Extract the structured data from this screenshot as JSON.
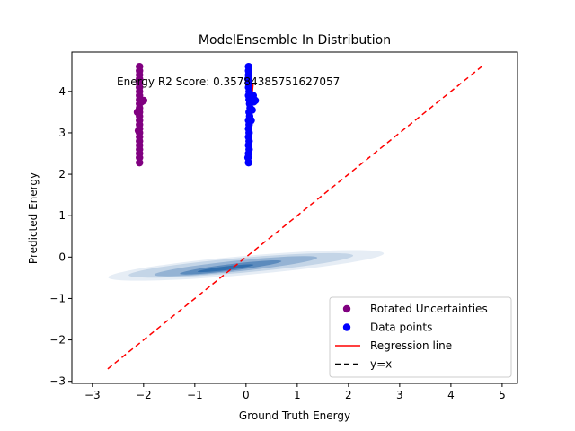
{
  "chart_data": {
    "type": "scatter",
    "title": "ModelEnsemble In Distribution",
    "xlabel": "Ground Truth Energy",
    "ylabel": "Predicted Energy",
    "xlim": [
      -3.4,
      5.3
    ],
    "ylim": [
      -3.05,
      4.95
    ],
    "xticks": [
      -3,
      -2,
      -1,
      0,
      1,
      2,
      3,
      4,
      5
    ],
    "yticks": [
      -3,
      -2,
      -1,
      0,
      1,
      2,
      3,
      4
    ],
    "xtick_labels": [
      "−3",
      "−2",
      "−1",
      "0",
      "1",
      "2",
      "3",
      "4",
      "5"
    ],
    "ytick_labels": [
      "−3",
      "−2",
      "−1",
      "0",
      "1",
      "2",
      "3",
      "4"
    ],
    "grid": false,
    "legend_position": "lower-right",
    "annotation": "Energy R2 Score: 0.35784385751627057",
    "series": [
      {
        "name": "Rotated Uncertainties",
        "kind": "scatter",
        "color": "#800080",
        "points": [
          [
            -2.08,
            2.28
          ],
          [
            -2.08,
            2.4
          ],
          [
            -2.08,
            2.5
          ],
          [
            -2.08,
            2.6
          ],
          [
            -2.08,
            2.7
          ],
          [
            -2.08,
            2.8
          ],
          [
            -2.08,
            2.9
          ],
          [
            -2.08,
            3.0
          ],
          [
            -2.08,
            3.1
          ],
          [
            -2.08,
            3.2
          ],
          [
            -2.08,
            3.3
          ],
          [
            -2.08,
            3.4
          ],
          [
            -2.08,
            3.5
          ],
          [
            -2.08,
            3.6
          ],
          [
            -2.08,
            3.7
          ],
          [
            -2.08,
            3.8
          ],
          [
            -2.08,
            3.9
          ],
          [
            -2.08,
            4.0
          ],
          [
            -2.08,
            4.1
          ],
          [
            -2.08,
            4.2
          ],
          [
            -2.08,
            4.3
          ],
          [
            -2.08,
            4.4
          ],
          [
            -2.08,
            4.5
          ],
          [
            -2.08,
            4.6
          ],
          [
            -2.04,
            3.75
          ],
          [
            -2.0,
            3.78
          ],
          [
            -2.1,
            3.05
          ],
          [
            -2.12,
            3.5
          ]
        ]
      },
      {
        "name": "Data points",
        "kind": "scatter",
        "color": "#0000ff",
        "points": [
          [
            0.05,
            2.28
          ],
          [
            0.04,
            2.4
          ],
          [
            0.05,
            2.5
          ],
          [
            0.06,
            2.6
          ],
          [
            0.05,
            2.7
          ],
          [
            0.06,
            2.8
          ],
          [
            0.05,
            2.9
          ],
          [
            0.06,
            3.0
          ],
          [
            0.05,
            3.1
          ],
          [
            0.06,
            3.2
          ],
          [
            0.05,
            3.3
          ],
          [
            0.07,
            3.4
          ],
          [
            0.06,
            3.5
          ],
          [
            0.08,
            3.6
          ],
          [
            0.07,
            3.7
          ],
          [
            0.06,
            3.8
          ],
          [
            0.05,
            3.9
          ],
          [
            0.06,
            4.0
          ],
          [
            0.05,
            4.1
          ],
          [
            0.05,
            4.2
          ],
          [
            0.04,
            4.3
          ],
          [
            0.05,
            4.4
          ],
          [
            0.05,
            4.5
          ],
          [
            0.05,
            4.6
          ],
          [
            0.15,
            3.75
          ],
          [
            0.18,
            3.78
          ],
          [
            0.12,
            3.55
          ],
          [
            0.1,
            3.3
          ],
          [
            0.14,
            3.9
          ]
        ]
      },
      {
        "name": "Regression line",
        "kind": "line",
        "color": "#ff0000",
        "dash": "solid",
        "points": [
          [
            0.06,
            3.12
          ],
          [
            0.14,
            4.2
          ]
        ]
      },
      {
        "name": "y=x",
        "kind": "line",
        "color": "#ff0000",
        "legend_color": "#000000",
        "dash": "dashed",
        "points": [
          [
            -2.7,
            -2.7
          ],
          [
            4.65,
            4.65
          ]
        ]
      }
    ],
    "density": {
      "color": "#08519c",
      "levels": [
        {
          "cx": 0.0,
          "cy": -0.2,
          "rx": 2.7,
          "ry": 0.23,
          "angle": 5,
          "opacity": 0.1
        },
        {
          "cx": -0.1,
          "cy": -0.2,
          "rx": 2.2,
          "ry": 0.18,
          "angle": 5,
          "opacity": 0.15
        },
        {
          "cx": -0.2,
          "cy": -0.22,
          "rx": 1.6,
          "ry": 0.13,
          "angle": 6,
          "opacity": 0.25
        },
        {
          "cx": -0.3,
          "cy": -0.25,
          "rx": 1.0,
          "ry": 0.08,
          "angle": 7,
          "opacity": 0.4
        },
        {
          "cx": -0.4,
          "cy": -0.27,
          "rx": 0.55,
          "ry": 0.045,
          "angle": 7,
          "opacity": 0.5
        }
      ]
    }
  }
}
